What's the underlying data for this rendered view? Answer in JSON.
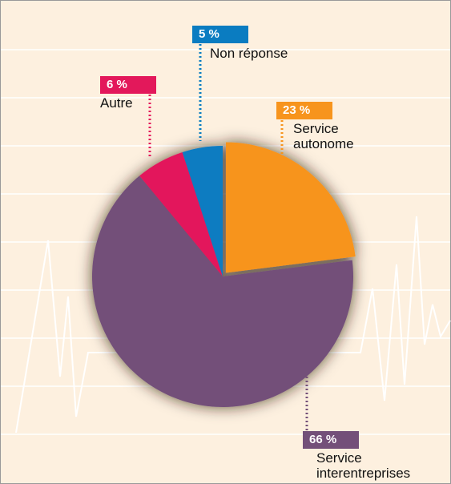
{
  "chart_data": {
    "type": "pie",
    "categories": [
      "Service autonome",
      "Service interentreprises",
      "Autre",
      "Non réponse"
    ],
    "values": [
      23,
      66,
      6,
      5
    ],
    "value_labels": [
      "23 %",
      "66 %",
      "6 %",
      "5 %"
    ],
    "colors": [
      "#f7941d",
      "#735079",
      "#e3185b",
      "#0a7cc1"
    ]
  }
}
